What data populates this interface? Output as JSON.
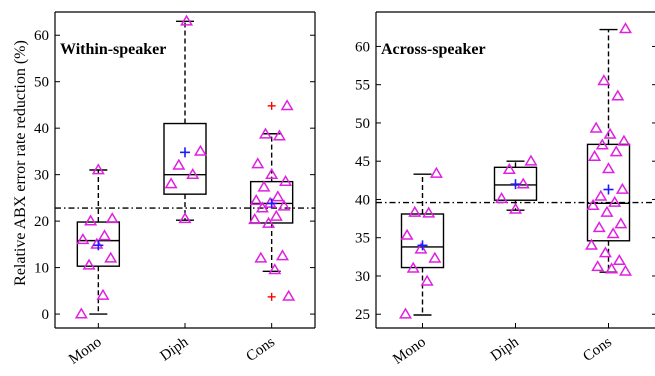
{
  "chart_data": [
    {
      "type": "box",
      "title": "Within-speaker",
      "ylabel": "Relative ABX error rate reduction (%)",
      "ylim": [
        -3,
        65
      ],
      "yticks": [
        0,
        10,
        20,
        30,
        40,
        50,
        60
      ],
      "reference_line": 22.8,
      "categories": [
        "Mono",
        "Diph",
        "Cons"
      ],
      "boxes": [
        {
          "q1": 10.3,
          "median": 15.8,
          "q3": 19.8,
          "whisker_low": 0,
          "whisker_high": 31,
          "mean": 14.8,
          "outliers": [],
          "points": [
            0,
            4,
            10.5,
            12,
            15,
            16,
            16.8,
            20,
            20.5,
            31
          ]
        },
        {
          "q1": 25.8,
          "median": 30,
          "q3": 41,
          "whisker_low": 20.2,
          "whisker_high": 63,
          "mean": 34.8,
          "outliers": [],
          "points": [
            20.5,
            28,
            30,
            32,
            35,
            63
          ]
        },
        {
          "q1": 19.6,
          "median": 23.8,
          "q3": 28.5,
          "whisker_low": 9.2,
          "whisker_high": 38.8,
          "mean": 23.8,
          "outliers": [
            3.7,
            44.8
          ],
          "points": [
            3.8,
            9.5,
            12,
            12.5,
            19.5,
            20.3,
            21,
            22.8,
            23.2,
            23.8,
            24.4,
            25.2,
            27.3,
            28.5,
            30,
            32.3,
            38.3,
            38.7,
            44.8
          ]
        }
      ]
    },
    {
      "type": "box",
      "title": "Across-speaker",
      "ylabel": "",
      "ylim": [
        23.2,
        64.5
      ],
      "yticks": [
        25,
        30,
        35,
        40,
        45,
        50,
        55,
        60
      ],
      "reference_line": 39.6,
      "categories": [
        "Mono",
        "Diph",
        "Cons"
      ],
      "boxes": [
        {
          "q1": 31.1,
          "median": 33.8,
          "q3": 38.1,
          "whisker_low": 24.9,
          "whisker_high": 43.3,
          "mean": 34,
          "outliers": [],
          "points": [
            25,
            29.3,
            31,
            32.3,
            33.5,
            35.3,
            38.2,
            38.3,
            43.4
          ]
        },
        {
          "q1": 39.9,
          "median": 41.9,
          "q3": 44.2,
          "whisker_low": 38.6,
          "whisker_high": 45,
          "mean": 42,
          "outliers": [],
          "points": [
            38.7,
            40.1,
            42,
            43.9,
            45
          ]
        },
        {
          "q1": 34.6,
          "median": 39.5,
          "q3": 47.2,
          "whisker_low": 30.5,
          "whisker_high": 62.2,
          "mean": 41.3,
          "outliers": [],
          "points": [
            30.6,
            30.9,
            31.2,
            32,
            33,
            34,
            35.5,
            36.3,
            36.8,
            38.3,
            39.2,
            39.6,
            40.4,
            41.3,
            44,
            45.6,
            46.2,
            47.1,
            47.6,
            48.5,
            49.3,
            53.5,
            55.5,
            62.3
          ]
        }
      ]
    }
  ]
}
